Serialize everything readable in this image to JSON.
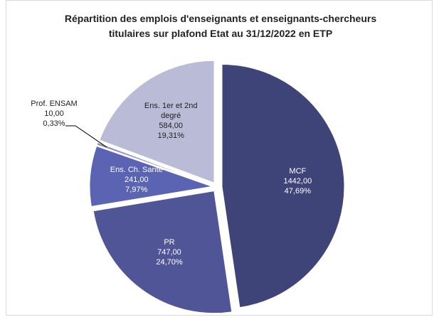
{
  "chart_data": {
    "type": "pie",
    "title": "Répartition des emplois d'enseignants et enseignants-chercheurs titulaires sur plafond Etat au 31/12/2022 en ETP",
    "categories": [
      "MCF",
      "PR",
      "Ens. Ch. Santé",
      "Prof. ENSAM",
      "Ens. 1er et 2nd degré"
    ],
    "values": [
      1442,
      747,
      241,
      10,
      584
    ],
    "value_labels": [
      "1442,00",
      "747,00",
      "241,00",
      "10,00",
      "584,00"
    ],
    "percent_labels": [
      "47,69%",
      "24,70%",
      "7,97%",
      "0,33%",
      "19,31%"
    ],
    "colors": [
      "#3e4378",
      "#4f5597",
      "#5b63b3",
      "#8a8fc6",
      "#b9bbd7"
    ],
    "start_angle": 0,
    "direction": "clockwise"
  }
}
